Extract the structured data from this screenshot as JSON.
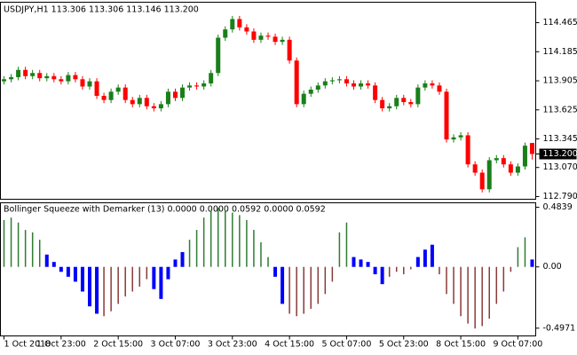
{
  "chart_data": [
    {
      "type": "candlestick",
      "title": "USDJPY,H1 113.306 113.306 113.146 113.200",
      "up_color": "#1a7f1a",
      "down_color": "#ff0000",
      "xlim": [
        -0.5,
        74.5
      ],
      "ylim": [
        112.764,
        114.662
      ],
      "yticks": [
        114.465,
        114.185,
        113.905,
        113.625,
        113.345,
        {
          "value": 113.07,
          "label": "113.070"
        },
        {
          "value": 112.79,
          "label": "112.790"
        }
      ],
      "price_marker": {
        "value": 113.2,
        "label": "113.200"
      },
      "ohlc": [
        [
          113.9,
          113.95,
          113.87,
          113.92
        ],
        [
          113.92,
          113.97,
          113.89,
          113.94
        ],
        [
          113.94,
          114.04,
          113.91,
          114.01
        ],
        [
          114.01,
          114.04,
          113.92,
          113.95
        ],
        [
          113.95,
          114.01,
          113.92,
          113.98
        ],
        [
          113.98,
          114.01,
          113.9,
          113.93
        ],
        [
          113.93,
          113.98,
          113.9,
          113.95
        ],
        [
          113.95,
          113.98,
          113.89,
          113.92
        ],
        [
          113.92,
          113.95,
          113.87,
          113.9
        ],
        [
          113.9,
          113.99,
          113.87,
          113.96
        ],
        [
          113.96,
          113.99,
          113.89,
          113.92
        ],
        [
          113.92,
          113.95,
          113.82,
          113.85
        ],
        [
          113.85,
          113.93,
          113.82,
          113.9
        ],
        [
          113.9,
          113.93,
          113.73,
          113.76
        ],
        [
          113.76,
          113.79,
          113.69,
          113.72
        ],
        [
          113.72,
          113.83,
          113.69,
          113.8
        ],
        [
          113.8,
          113.87,
          113.77,
          113.84
        ],
        [
          113.84,
          113.87,
          113.69,
          113.72
        ],
        [
          113.72,
          113.75,
          113.65,
          113.68
        ],
        [
          113.68,
          113.77,
          113.65,
          113.74
        ],
        [
          113.74,
          113.77,
          113.63,
          113.66
        ],
        [
          113.66,
          113.69,
          113.61,
          113.64
        ],
        [
          113.64,
          113.71,
          113.61,
          113.68
        ],
        [
          113.68,
          113.83,
          113.65,
          113.8
        ],
        [
          113.8,
          113.83,
          113.71,
          113.74
        ],
        [
          113.74,
          113.87,
          113.71,
          113.84
        ],
        [
          113.84,
          113.89,
          113.81,
          113.86
        ],
        [
          113.86,
          113.89,
          113.82,
          113.85
        ],
        [
          113.85,
          113.91,
          113.82,
          113.88
        ],
        [
          113.88,
          114.01,
          113.85,
          113.98
        ],
        [
          113.98,
          114.35,
          113.95,
          114.32
        ],
        [
          114.32,
          114.43,
          114.29,
          114.4
        ],
        [
          114.4,
          114.53,
          114.37,
          114.5
        ],
        [
          114.5,
          114.53,
          114.39,
          114.42
        ],
        [
          114.42,
          114.45,
          114.35,
          114.38
        ],
        [
          114.38,
          114.41,
          114.27,
          114.3
        ],
        [
          114.3,
          114.37,
          114.27,
          114.34
        ],
        [
          114.34,
          114.37,
          114.3,
          114.33
        ],
        [
          114.33,
          114.36,
          114.25,
          114.28
        ],
        [
          114.28,
          114.33,
          114.25,
          114.3
        ],
        [
          114.3,
          114.33,
          114.07,
          114.1
        ],
        [
          114.1,
          114.13,
          113.65,
          113.68
        ],
        [
          113.68,
          113.81,
          113.65,
          113.78
        ],
        [
          113.78,
          113.85,
          113.75,
          113.82
        ],
        [
          113.82,
          113.89,
          113.79,
          113.86
        ],
        [
          113.86,
          113.93,
          113.83,
          113.9
        ],
        [
          113.9,
          113.94,
          113.87,
          113.91
        ],
        [
          113.91,
          113.95,
          113.88,
          113.92
        ],
        [
          113.92,
          113.95,
          113.85,
          113.88
        ],
        [
          113.88,
          113.91,
          113.82,
          113.85
        ],
        [
          113.85,
          113.91,
          113.82,
          113.88
        ],
        [
          113.88,
          113.91,
          113.83,
          113.86
        ],
        [
          113.86,
          113.89,
          113.69,
          113.72
        ],
        [
          113.72,
          113.75,
          113.61,
          113.64
        ],
        [
          113.64,
          113.69,
          113.61,
          113.66
        ],
        [
          113.66,
          113.77,
          113.63,
          113.74
        ],
        [
          113.74,
          113.77,
          113.67,
          113.7
        ],
        [
          113.7,
          113.73,
          113.65,
          113.68
        ],
        [
          113.68,
          113.87,
          113.65,
          113.84
        ],
        [
          113.84,
          113.91,
          113.81,
          113.88
        ],
        [
          113.88,
          113.91,
          113.83,
          113.86
        ],
        [
          113.86,
          113.89,
          113.77,
          113.8
        ],
        [
          113.8,
          113.83,
          113.31,
          113.34
        ],
        [
          113.34,
          113.39,
          113.31,
          113.36
        ],
        [
          113.36,
          113.41,
          113.33,
          113.38
        ],
        [
          113.38,
          113.41,
          113.07,
          113.1
        ],
        [
          113.1,
          113.13,
          112.99,
          113.02
        ],
        [
          113.02,
          113.05,
          112.83,
          112.86
        ],
        [
          112.86,
          113.17,
          112.83,
          113.14
        ],
        [
          113.14,
          113.19,
          113.11,
          113.16
        ],
        [
          113.16,
          113.19,
          113.07,
          113.1
        ],
        [
          113.1,
          113.13,
          112.99,
          113.02
        ],
        [
          113.02,
          113.11,
          112.99,
          113.08
        ],
        [
          113.08,
          113.31,
          113.05,
          113.28
        ],
        [
          113.306,
          113.306,
          113.146,
          113.2
        ]
      ]
    },
    {
      "type": "bar",
      "title": "Bollinger Squeeze with Demarker (13) 0.0000 0.0000 0.0592 0.0000 0.0592",
      "xlim": [
        -0.5,
        74.5
      ],
      "ylim": [
        -0.56,
        0.52
      ],
      "yticks": [
        0.4839,
        {
          "value": 0,
          "label": "0.00"
        },
        -0.4971
      ],
      "xticks": [
        {
          "value": 0,
          "label": "1 Oct 2018"
        },
        {
          "value": 8,
          "label": "1 Oct 23:00"
        },
        {
          "value": 16,
          "label": "2 Oct 15:00"
        },
        {
          "value": 24,
          "label": "3 Oct 07:00"
        },
        {
          "value": 32,
          "label": "3 Oct 23:00"
        },
        {
          "value": 40,
          "label": "4 Oct 15:00"
        },
        {
          "value": 48,
          "label": "5 Oct 07:00"
        },
        {
          "value": 56,
          "label": "5 Oct 23:00"
        },
        {
          "value": 64,
          "label": "8 Oct 15:00"
        },
        {
          "value": 72,
          "label": "9 Oct 07:00"
        }
      ],
      "series": [
        {
          "color": "#2e7d32",
          "values": [
            0.38,
            0.4,
            0.36,
            0.3,
            0.28,
            0.22,
            null,
            null,
            null,
            null,
            null,
            null,
            null,
            null,
            null,
            null,
            null,
            null,
            null,
            null,
            null,
            null,
            null,
            null,
            null,
            null,
            0.22,
            0.3,
            0.4,
            0.46,
            0.48,
            0.46,
            0.44,
            0.42,
            0.38,
            0.3,
            0.2,
            0.08,
            null,
            null,
            null,
            null,
            null,
            null,
            null,
            null,
            null,
            0.28,
            0.36,
            null,
            null,
            null,
            null,
            null,
            null,
            null,
            null,
            null,
            null,
            null,
            null,
            null,
            null,
            null,
            null,
            null,
            null,
            null,
            null,
            null,
            null,
            null,
            0.16,
            0.24,
            null
          ]
        },
        {
          "color": "#0000ff",
          "values": [
            null,
            null,
            null,
            null,
            null,
            null,
            0.1,
            0.04,
            -0.04,
            -0.08,
            -0.12,
            -0.2,
            -0.32,
            -0.38,
            null,
            null,
            null,
            null,
            null,
            null,
            null,
            -0.18,
            -0.26,
            -0.1,
            0.06,
            0.12,
            null,
            null,
            null,
            null,
            null,
            null,
            null,
            null,
            null,
            null,
            null,
            null,
            -0.08,
            -0.3,
            null,
            null,
            null,
            null,
            null,
            null,
            null,
            null,
            null,
            0.08,
            0.06,
            0.04,
            -0.06,
            -0.14,
            null,
            null,
            null,
            null,
            0.08,
            0.14,
            0.18,
            null,
            null,
            null,
            null,
            null,
            null,
            null,
            null,
            null,
            null,
            null,
            null,
            null,
            0.06
          ]
        },
        {
          "color": "#8b3a3a",
          "values": [
            null,
            null,
            null,
            null,
            null,
            null,
            null,
            null,
            null,
            null,
            null,
            null,
            null,
            null,
            -0.4,
            -0.36,
            -0.3,
            -0.24,
            -0.2,
            -0.16,
            -0.1,
            null,
            null,
            null,
            null,
            null,
            null,
            null,
            null,
            null,
            null,
            null,
            null,
            null,
            null,
            null,
            null,
            null,
            null,
            null,
            -0.38,
            -0.4,
            -0.38,
            -0.34,
            -0.3,
            -0.22,
            -0.12,
            null,
            null,
            null,
            null,
            null,
            null,
            null,
            -0.08,
            -0.04,
            -0.06,
            -0.02,
            null,
            null,
            null,
            -0.06,
            -0.22,
            -0.3,
            -0.4,
            -0.46,
            -0.5,
            -0.48,
            -0.42,
            -0.3,
            -0.2,
            -0.04,
            null,
            null,
            null
          ]
        }
      ]
    }
  ]
}
